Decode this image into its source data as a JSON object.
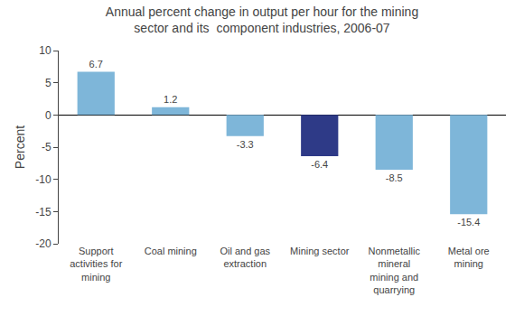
{
  "chart_data": {
    "type": "bar",
    "title": "Annual percent change in output per hour for the mining\nsector and its  component industries, 2006-07",
    "categories": [
      "Support\nactivities for\nmining",
      "Coal mining",
      "Oil and gas\nextraction",
      "Mining sector",
      "Nonmetallic\nmineral\nmining and\nquarrying",
      "Metal ore\nmining"
    ],
    "values": [
      6.7,
      1.2,
      -3.3,
      -6.4,
      -8.5,
      -15.4
    ],
    "colors": [
      "#7EB6D9",
      "#7EB6D9",
      "#7EB6D9",
      "#2E3A87",
      "#7EB6D9",
      "#7EB6D9"
    ],
    "ylabel": "Percent",
    "ylim": [
      -20,
      10
    ],
    "yticks": [
      -20,
      -15,
      -10,
      -5,
      0,
      5,
      10
    ],
    "grid": false,
    "data_labels": true
  }
}
